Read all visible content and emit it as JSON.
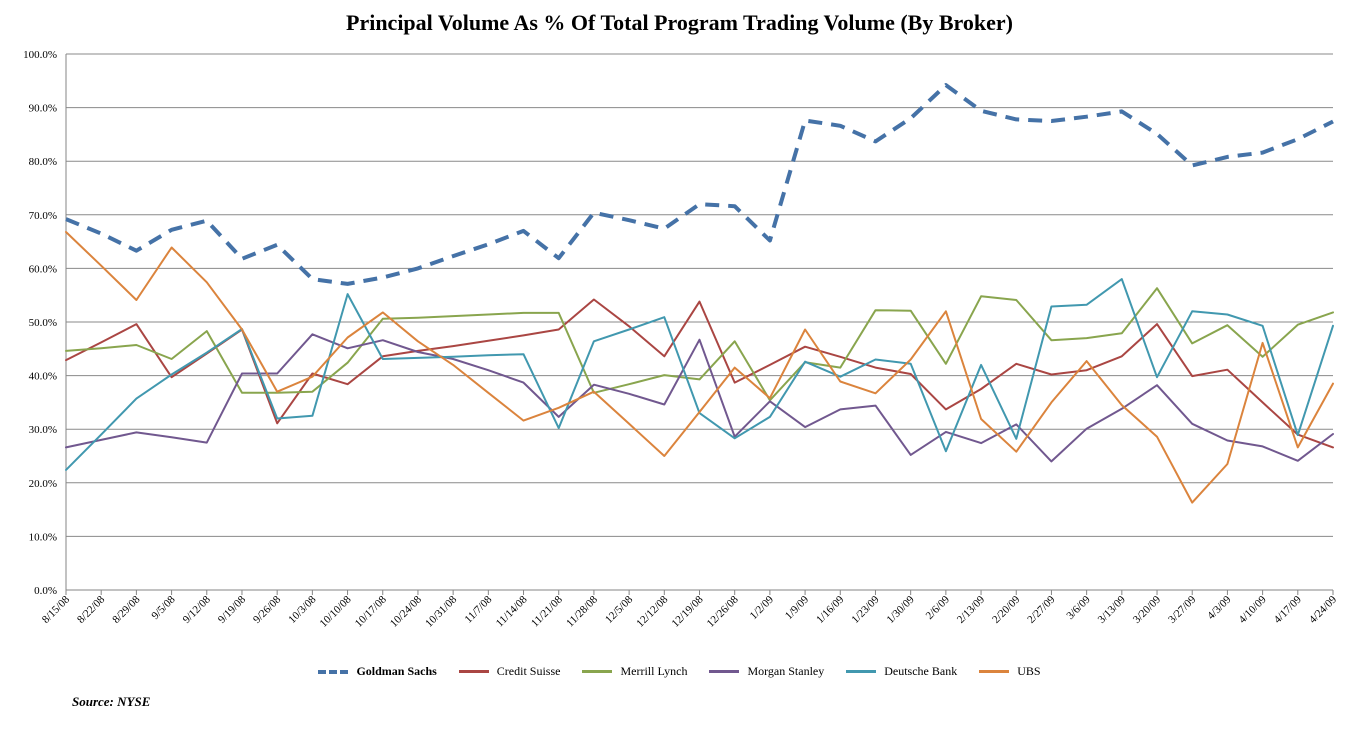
{
  "chart_data": {
    "type": "line",
    "title": "Principal Volume As % Of Total Program Trading Volume (By Broker)",
    "source": "Source: NYSE",
    "xlabel": "",
    "ylabel": "",
    "ylim": [
      0,
      100
    ],
    "y_ticks": [
      "0.0%",
      "10.0%",
      "20.0%",
      "30.0%",
      "40.0%",
      "50.0%",
      "60.0%",
      "70.0%",
      "80.0%",
      "90.0%",
      "100.0%"
    ],
    "grid": "horizontal",
    "legend_position": "bottom",
    "x": [
      "8/15/08",
      "8/22/08",
      "8/29/08",
      "9/5/08",
      "9/12/08",
      "9/19/08",
      "9/26/08",
      "10/3/08",
      "10/10/08",
      "10/17/08",
      "10/24/08",
      "10/31/08",
      "11/7/08",
      "11/14/08",
      "11/21/08",
      "11/28/08",
      "12/5/08",
      "12/12/08",
      "12/19/08",
      "12/26/08",
      "1/2/09",
      "1/9/09",
      "1/16/09",
      "1/23/09",
      "1/30/09",
      "2/6/09",
      "2/13/09",
      "2/20/09",
      "2/27/09",
      "3/6/09",
      "3/13/09",
      "3/20/09",
      "3/27/09",
      "4/3/09",
      "4/10/09",
      "4/17/09",
      "4/24/09"
    ],
    "series": [
      {
        "name": "Goldman Sachs",
        "color": "#4572A7",
        "dashed": true,
        "bold": true,
        "values": [
          69.2,
          66.5,
          63.3,
          67.2,
          68.9,
          61.8,
          64.4,
          58.0,
          57.1,
          58.3,
          60.0,
          62.3,
          64.5,
          67.0,
          61.9,
          70.4,
          69.0,
          67.4,
          72.0,
          71.6,
          65.2,
          87.6,
          86.6,
          83.7,
          88.0,
          94.2,
          89.4,
          87.8,
          87.5,
          88.3,
          89.3,
          85.1,
          79.2,
          80.8,
          81.6,
          84.1,
          87.4
        ]
      },
      {
        "name": "Credit Suisse",
        "color": "#AA4643",
        "dashed": false,
        "values": [
          42.9,
          46.2,
          49.6,
          39.7,
          44.1,
          48.6,
          31.1,
          40.4,
          38.4,
          43.6,
          44.6,
          45.5,
          46.5,
          47.5,
          48.6,
          54.2,
          49.2,
          43.6,
          53.8,
          38.7,
          42.0,
          45.4,
          43.5,
          41.5,
          40.3,
          33.7,
          37.5,
          42.2,
          40.2,
          41.0,
          43.6,
          49.6,
          39.9,
          41.1,
          35.0,
          29.0,
          26.6
        ]
      },
      {
        "name": "Merrill  Lynch",
        "color": "#89A54E",
        "dashed": false,
        "values": [
          44.6,
          45.1,
          45.7,
          43.1,
          48.3,
          36.8,
          36.8,
          37.0,
          42.4,
          50.6,
          50.8,
          51.1,
          51.4,
          51.7,
          51.7,
          36.8,
          38.4,
          40.1,
          39.3,
          46.4,
          35.4,
          42.5,
          41.5,
          52.2,
          52.1,
          42.2,
          54.8,
          54.1,
          46.6,
          47.0,
          47.9,
          56.3,
          46.0,
          49.4,
          43.5,
          49.5,
          51.8
        ]
      },
      {
        "name": "Morgan Stanley",
        "color": "#71588F",
        "dashed": false,
        "values": [
          26.6,
          28.0,
          29.4,
          28.5,
          27.5,
          40.4,
          40.4,
          47.7,
          45.1,
          46.6,
          44.4,
          43.1,
          41.0,
          38.7,
          32.3,
          38.3,
          36.6,
          34.6,
          46.7,
          28.6,
          35.2,
          30.4,
          33.7,
          34.4,
          25.2,
          29.5,
          27.4,
          30.9,
          24.0,
          30.1,
          33.8,
          38.2,
          31.0,
          27.9,
          26.8,
          24.1,
          29.1
        ]
      },
      {
        "name": "Deutsche Bank",
        "color": "#4198AF",
        "dashed": false,
        "values": [
          22.4,
          29.0,
          35.7,
          40.2,
          44.3,
          48.7,
          32.0,
          32.5,
          55.2,
          43.1,
          43.3,
          43.5,
          43.8,
          44.0,
          30.2,
          46.4,
          48.6,
          50.9,
          33.0,
          28.3,
          32.3,
          42.6,
          39.8,
          43.0,
          42.2,
          25.9,
          42.0,
          28.2,
          52.9,
          53.2,
          58.0,
          39.7,
          52.0,
          51.4,
          49.3,
          28.9,
          49.3
        ]
      },
      {
        "name": "UBS",
        "color": "#DB843D",
        "dashed": false,
        "values": [
          66.8,
          60.5,
          54.1,
          63.9,
          57.4,
          48.6,
          37.0,
          39.8,
          47.1,
          51.8,
          46.4,
          42.0,
          36.8,
          31.6,
          34.0,
          37.0,
          31.0,
          25.0,
          33.2,
          41.5,
          35.8,
          48.6,
          38.9,
          36.7,
          43.0,
          52.0,
          31.9,
          25.8,
          35.0,
          42.7,
          34.5,
          28.6,
          16.3,
          23.5,
          46.1,
          26.6,
          38.5
        ]
      }
    ]
  }
}
